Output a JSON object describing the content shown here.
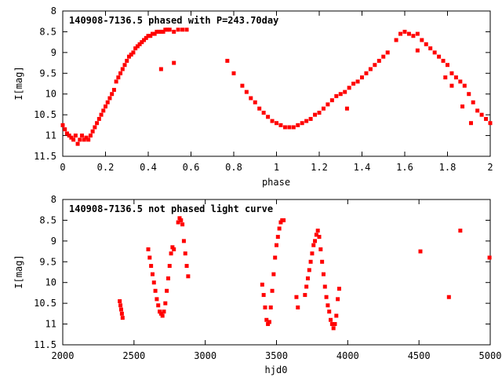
{
  "chart_data": [
    {
      "type": "scatter",
      "title": "140908-7136.5 phased with P=243.70day",
      "xlabel": "phase",
      "ylabel": "I[mag]",
      "xlim": [
        0,
        2
      ],
      "ylim": [
        11.5,
        8
      ],
      "y_inverted": true,
      "xticks": [
        "0",
        "0.2",
        "0.4",
        "0.6",
        "0.8",
        "1",
        "1.2",
        "1.4",
        "1.6",
        "1.8",
        "2"
      ],
      "yticks": [
        "8",
        "8.5",
        "9",
        "9.5",
        "10",
        "10.5",
        "11",
        "11.5"
      ],
      "marker_color": "#ff0000",
      "grid": false,
      "x": [
        0.0,
        0.01,
        0.02,
        0.03,
        0.04,
        0.05,
        0.06,
        0.07,
        0.08,
        0.09,
        0.1,
        0.11,
        0.12,
        0.13,
        0.14,
        0.15,
        0.16,
        0.17,
        0.18,
        0.19,
        0.2,
        0.21,
        0.22,
        0.23,
        0.24,
        0.25,
        0.26,
        0.27,
        0.28,
        0.29,
        0.3,
        0.31,
        0.32,
        0.33,
        0.34,
        0.35,
        0.36,
        0.37,
        0.38,
        0.39,
        0.4,
        0.41,
        0.42,
        0.43,
        0.44,
        0.45,
        0.46,
        0.47,
        0.48,
        0.49,
        0.5,
        0.52,
        0.54,
        0.56,
        0.58,
        0.46,
        0.52,
        0.77,
        0.8,
        0.84,
        0.86,
        0.88,
        0.9,
        0.92,
        0.94,
        0.96,
        0.98,
        1.0,
        1.02,
        1.04,
        1.06,
        1.08,
        1.1,
        1.12,
        1.14,
        1.16,
        1.18,
        1.2,
        1.22,
        1.24,
        1.26,
        1.28,
        1.3,
        1.32,
        1.34,
        1.36,
        1.38,
        1.4,
        1.42,
        1.44,
        1.46,
        1.48,
        1.5,
        1.52,
        1.33,
        1.56,
        1.58,
        1.6,
        1.62,
        1.64,
        1.66,
        1.68,
        1.66,
        1.7,
        1.72,
        1.74,
        1.76,
        1.78,
        1.8,
        1.82,
        1.84,
        1.86,
        1.88,
        1.9,
        1.92,
        1.94,
        1.96,
        1.98,
        2.0,
        1.79,
        1.82,
        1.87,
        1.91
      ],
      "y": [
        10.75,
        10.85,
        10.95,
        11.0,
        11.05,
        11.1,
        11.0,
        11.2,
        11.1,
        11.0,
        11.1,
        11.05,
        11.1,
        11.0,
        10.9,
        10.8,
        10.7,
        10.6,
        10.5,
        10.4,
        10.3,
        10.2,
        10.1,
        10.0,
        9.9,
        9.7,
        9.6,
        9.5,
        9.4,
        9.3,
        9.2,
        9.1,
        9.05,
        9.0,
        8.9,
        8.85,
        8.8,
        8.75,
        8.7,
        8.65,
        8.6,
        8.6,
        8.55,
        8.55,
        8.5,
        8.5,
        8.5,
        8.5,
        8.45,
        8.45,
        8.45,
        8.5,
        8.45,
        8.45,
        8.45,
        9.4,
        9.25,
        9.2,
        9.5,
        9.8,
        9.95,
        10.1,
        10.2,
        10.35,
        10.45,
        10.55,
        10.65,
        10.7,
        10.75,
        10.8,
        10.8,
        10.8,
        10.75,
        10.7,
        10.65,
        10.6,
        10.5,
        10.45,
        10.35,
        10.25,
        10.15,
        10.05,
        10.0,
        9.95,
        9.85,
        9.75,
        9.7,
        9.6,
        9.5,
        9.4,
        9.3,
        9.2,
        9.1,
        9.0,
        10.35,
        8.7,
        8.55,
        8.5,
        8.55,
        8.6,
        8.55,
        8.7,
        8.95,
        8.8,
        8.9,
        9.0,
        9.1,
        9.2,
        9.3,
        9.5,
        9.6,
        9.7,
        9.8,
        10.0,
        10.2,
        10.4,
        10.5,
        10.6,
        10.7,
        9.6,
        9.8,
        10.3,
        10.7
      ]
    },
    {
      "type": "scatter",
      "title": "140908-7136.5 not phased light curve",
      "xlabel": "hjd0",
      "ylabel": "I[mag]",
      "xlim": [
        2000,
        5000
      ],
      "ylim": [
        11.5,
        8
      ],
      "y_inverted": true,
      "xticks": [
        "2000",
        "2500",
        "3000",
        "3500",
        "4000",
        "4500",
        "5000"
      ],
      "yticks": [
        "8",
        "8.5",
        "9",
        "9.5",
        "10",
        "10.5",
        "11",
        "11.5"
      ],
      "marker_color": "#ff0000",
      "grid": false,
      "x": [
        2400,
        2405,
        2410,
        2415,
        2420,
        2600,
        2610,
        2620,
        2630,
        2640,
        2650,
        2660,
        2670,
        2680,
        2690,
        2700,
        2710,
        2720,
        2730,
        2740,
        2750,
        2760,
        2770,
        2780,
        2810,
        2820,
        2830,
        2840,
        2850,
        2860,
        2870,
        2880,
        3400,
        3410,
        3420,
        3430,
        3440,
        3450,
        3460,
        3470,
        3480,
        3490,
        3500,
        3510,
        3520,
        3530,
        3540,
        3550,
        3640,
        3650,
        3700,
        3710,
        3720,
        3730,
        3740,
        3750,
        3760,
        3770,
        3780,
        3790,
        3800,
        3810,
        3820,
        3830,
        3840,
        3850,
        3860,
        3870,
        3880,
        3890,
        3900,
        3910,
        3920,
        3930,
        3940,
        4510,
        4710,
        4790,
        4995
      ],
      "y": [
        10.45,
        10.55,
        10.65,
        10.75,
        10.85,
        9.2,
        9.4,
        9.6,
        9.8,
        10.0,
        10.2,
        10.4,
        10.55,
        10.7,
        10.75,
        10.8,
        10.7,
        10.5,
        10.2,
        9.9,
        9.6,
        9.3,
        9.15,
        9.2,
        8.55,
        8.45,
        8.5,
        8.6,
        9.0,
        9.3,
        9.6,
        9.85,
        10.05,
        10.3,
        10.6,
        10.9,
        11.0,
        10.95,
        10.6,
        10.2,
        9.8,
        9.4,
        9.1,
        8.9,
        8.7,
        8.55,
        8.5,
        8.5,
        10.35,
        10.6,
        10.3,
        10.1,
        9.9,
        9.7,
        9.5,
        9.3,
        9.1,
        9.0,
        8.85,
        8.75,
        8.9,
        9.2,
        9.5,
        9.8,
        10.1,
        10.35,
        10.55,
        10.7,
        10.9,
        11.0,
        11.1,
        11.0,
        10.8,
        10.4,
        10.15,
        9.25,
        10.35,
        8.75,
        9.4
      ]
    }
  ]
}
